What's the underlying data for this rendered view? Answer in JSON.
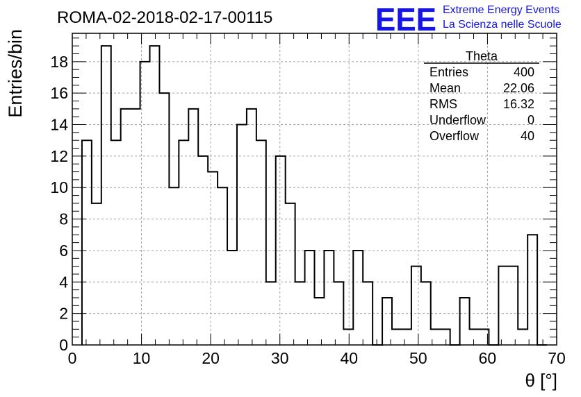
{
  "title": "ROMA-02-2018-02-17-00115",
  "brand": {
    "logo": "EEE",
    "line1": "Extreme Energy Events",
    "line2": "La Scienza nelle Scuole",
    "color": "#1515e8"
  },
  "stats": {
    "name": "Theta",
    "rows": [
      {
        "label": "Entries",
        "value": "400"
      },
      {
        "label": "Mean",
        "value": "22.06"
      },
      {
        "label": "RMS",
        "value": "16.32"
      },
      {
        "label": "Underflow",
        "value": "0"
      },
      {
        "label": "Overflow",
        "value": "40"
      }
    ]
  },
  "chart_data": {
    "type": "bar",
    "style": "step-histogram",
    "xlabel": "θ [°]",
    "ylabel": "Entries/bin",
    "xlim": [
      0,
      70
    ],
    "ylim": [
      0,
      19.8
    ],
    "bin_edges_start": 1.4,
    "bin_width": 1.4,
    "values": [
      13,
      9,
      19,
      13,
      15,
      15,
      18,
      19,
      16,
      10,
      13,
      15,
      12,
      11,
      10,
      6,
      14,
      15,
      13,
      4,
      12,
      9,
      4,
      6,
      3,
      6,
      4,
      1,
      6,
      4,
      0,
      3,
      1,
      1,
      5,
      4,
      1,
      1,
      0,
      3,
      1,
      1,
      0,
      5,
      5,
      1,
      7,
      0
    ],
    "x_ticks": [
      0,
      10,
      20,
      30,
      40,
      50,
      60,
      70
    ],
    "y_ticks": [
      0,
      2,
      4,
      6,
      8,
      10,
      12,
      14,
      16,
      18
    ],
    "grid": true
  }
}
